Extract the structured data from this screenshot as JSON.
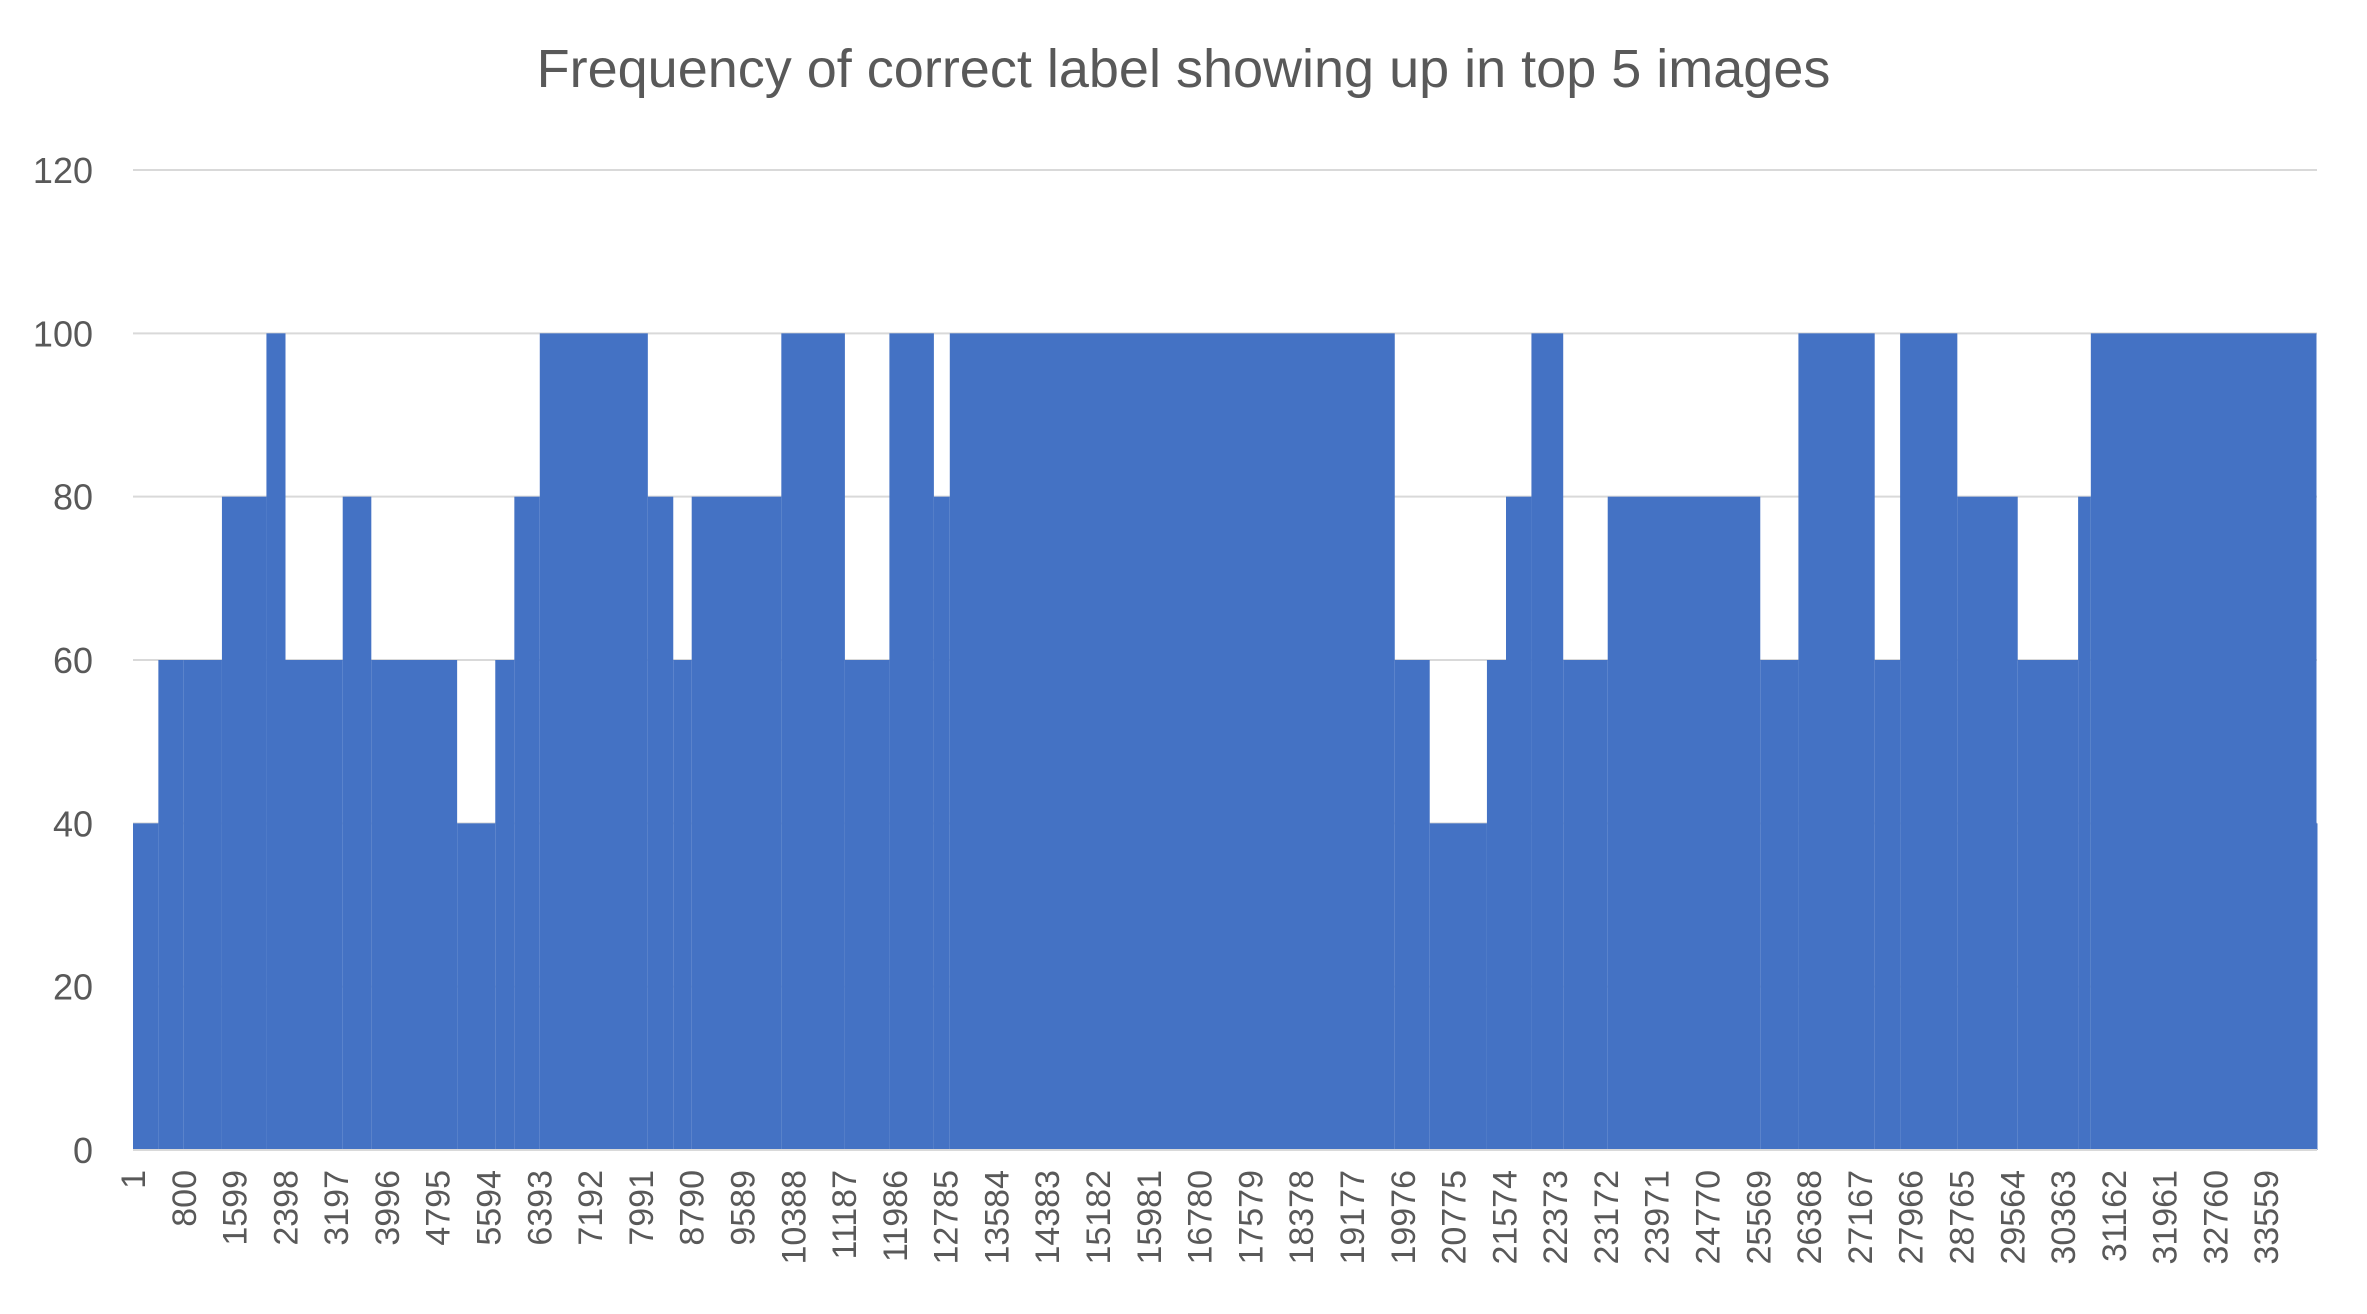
{
  "chart_data": {
    "type": "bar",
    "title": "Frequency of correct label showing up in top 5 images",
    "xlabel": "",
    "ylabel": "",
    "ylim": [
      0,
      120
    ],
    "yticks": [
      0,
      20,
      40,
      60,
      80,
      100,
      120
    ],
    "grid": true,
    "legend": "none",
    "bar_color": "#4472c4",
    "x_range": [
      1,
      34358
    ],
    "x_tick_labels": [
      "1",
      "800",
      "1599",
      "2398",
      "3197",
      "3996",
      "4795",
      "5594",
      "6393",
      "7192",
      "7991",
      "8790",
      "9589",
      "10388",
      "11187",
      "11986",
      "12785",
      "13584",
      "14383",
      "15182",
      "15981",
      "16780",
      "17579",
      "18378",
      "19177",
      "19976",
      "20775",
      "21574",
      "22373",
      "23172",
      "23971",
      "24770",
      "25569",
      "26368",
      "27167",
      "27966",
      "28765",
      "29564",
      "30363",
      "31162",
      "31961",
      "32760",
      "33559"
    ],
    "level_segments": [
      {
        "x_start": 1,
        "x_end": 400,
        "value": 40
      },
      {
        "x_start": 400,
        "x_end": 800,
        "value": 60
      },
      {
        "x_start": 800,
        "x_end": 1400,
        "value": 60
      },
      {
        "x_start": 1400,
        "x_end": 2100,
        "value": 80
      },
      {
        "x_start": 2100,
        "x_end": 2400,
        "value": 100
      },
      {
        "x_start": 2400,
        "x_end": 3300,
        "value": 60
      },
      {
        "x_start": 3300,
        "x_end": 3750,
        "value": 80
      },
      {
        "x_start": 3750,
        "x_end": 5100,
        "value": 60
      },
      {
        "x_start": 5100,
        "x_end": 5700,
        "value": 40
      },
      {
        "x_start": 5700,
        "x_end": 6000,
        "value": 60
      },
      {
        "x_start": 6000,
        "x_end": 6400,
        "value": 80
      },
      {
        "x_start": 6400,
        "x_end": 8100,
        "value": 100
      },
      {
        "x_start": 8100,
        "x_end": 8500,
        "value": 80
      },
      {
        "x_start": 8500,
        "x_end": 8790,
        "value": 60
      },
      {
        "x_start": 8790,
        "x_end": 10200,
        "value": 80
      },
      {
        "x_start": 10200,
        "x_end": 11200,
        "value": 100
      },
      {
        "x_start": 11200,
        "x_end": 11900,
        "value": 60
      },
      {
        "x_start": 11900,
        "x_end": 12600,
        "value": 100
      },
      {
        "x_start": 12600,
        "x_end": 12850,
        "value": 80
      },
      {
        "x_start": 12850,
        "x_end": 19850,
        "value": 100
      },
      {
        "x_start": 19850,
        "x_end": 20400,
        "value": 60
      },
      {
        "x_start": 20400,
        "x_end": 21300,
        "value": 40
      },
      {
        "x_start": 21300,
        "x_end": 21600,
        "value": 60
      },
      {
        "x_start": 21600,
        "x_end": 22000,
        "value": 80
      },
      {
        "x_start": 22000,
        "x_end": 22500,
        "value": 100
      },
      {
        "x_start": 22500,
        "x_end": 23200,
        "value": 60
      },
      {
        "x_start": 23200,
        "x_end": 25600,
        "value": 80
      },
      {
        "x_start": 25600,
        "x_end": 26200,
        "value": 60
      },
      {
        "x_start": 26200,
        "x_end": 27400,
        "value": 100
      },
      {
        "x_start": 27400,
        "x_end": 27800,
        "value": 60
      },
      {
        "x_start": 27800,
        "x_end": 28700,
        "value": 100
      },
      {
        "x_start": 28700,
        "x_end": 29650,
        "value": 80
      },
      {
        "x_start": 29650,
        "x_end": 30600,
        "value": 60
      },
      {
        "x_start": 30600,
        "x_end": 30800,
        "value": 80
      },
      {
        "x_start": 30800,
        "x_end": 34350,
        "value": 100
      },
      {
        "x_start": 34350,
        "x_end": 34358,
        "value": 40
      }
    ]
  }
}
